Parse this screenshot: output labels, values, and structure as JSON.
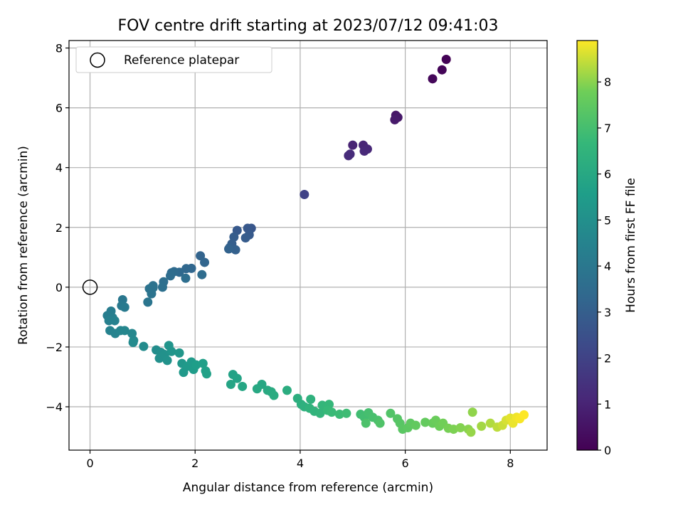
{
  "chart_data": {
    "type": "scatter",
    "title": "FOV centre drift starting at 2023/07/12 09:41:03",
    "xlabel": "Angular distance from reference (arcmin)",
    "ylabel": "Rotation from reference (arcmin)",
    "xlim": [
      -0.4,
      8.7
    ],
    "ylim": [
      -5.45,
      8.25
    ],
    "xticks": [
      0,
      2,
      4,
      6,
      8
    ],
    "xtick_labels": [
      "0",
      "2",
      "4",
      "6",
      "8"
    ],
    "yticks": [
      -4,
      -2,
      0,
      2,
      4,
      6,
      8
    ],
    "ytick_labels": [
      "−4",
      "−2",
      "0",
      "2",
      "4",
      "6",
      "8"
    ],
    "grid": true,
    "colormap": "viridis",
    "colorbar": {
      "label": "Hours from first FF file",
      "range": [
        0,
        8.9
      ],
      "ticks": [
        0,
        1,
        2,
        3,
        4,
        5,
        6,
        7,
        8
      ],
      "tick_labels": [
        "0",
        "1",
        "2",
        "3",
        "4",
        "5",
        "6",
        "7",
        "8"
      ]
    },
    "legend": {
      "placement": "upper-left",
      "entries": [
        "Reference platepar"
      ]
    },
    "reference_point": {
      "x": 0,
      "y": 0
    },
    "points": [
      [
        6.78,
        7.62,
        0.05
      ],
      [
        6.7,
        7.27,
        0.12
      ],
      [
        6.52,
        6.97,
        0.2
      ],
      [
        5.82,
        5.75,
        0.6
      ],
      [
        5.86,
        5.68,
        0.65
      ],
      [
        5.8,
        5.6,
        0.7
      ],
      [
        5.0,
        4.75,
        1.0
      ],
      [
        5.2,
        4.75,
        1.05
      ],
      [
        5.28,
        4.62,
        1.1
      ],
      [
        5.22,
        4.55,
        1.15
      ],
      [
        4.92,
        4.4,
        1.2
      ],
      [
        4.95,
        4.45,
        1.25
      ],
      [
        4.08,
        3.1,
        2.0
      ],
      [
        3.07,
        1.97,
        2.7
      ],
      [
        3.0,
        1.97,
        2.75
      ],
      [
        2.8,
        1.9,
        2.8
      ],
      [
        3.03,
        1.75,
        2.85
      ],
      [
        2.96,
        1.65,
        2.9
      ],
      [
        2.74,
        1.68,
        2.95
      ],
      [
        2.7,
        1.45,
        3.0
      ],
      [
        2.66,
        1.33,
        3.05
      ],
      [
        2.77,
        1.25,
        3.1
      ],
      [
        2.64,
        1.28,
        3.15
      ],
      [
        2.1,
        1.05,
        3.2
      ],
      [
        2.18,
        0.83,
        3.25
      ],
      [
        1.93,
        0.63,
        3.3
      ],
      [
        1.83,
        0.62,
        3.35
      ],
      [
        1.7,
        0.5,
        3.4
      ],
      [
        1.6,
        0.52,
        3.45
      ],
      [
        1.55,
        0.48,
        3.5
      ],
      [
        1.53,
        0.38,
        3.55
      ],
      [
        2.13,
        0.42,
        3.55
      ],
      [
        1.82,
        0.3,
        3.6
      ],
      [
        1.4,
        0.18,
        3.65
      ],
      [
        1.38,
        0.0,
        3.7
      ],
      [
        1.2,
        0.05,
        3.75
      ],
      [
        1.13,
        -0.05,
        3.8
      ],
      [
        1.2,
        -0.02,
        3.82
      ],
      [
        1.17,
        -0.22,
        3.85
      ],
      [
        1.1,
        -0.5,
        3.9
      ],
      [
        0.62,
        -0.42,
        4.0
      ],
      [
        0.6,
        -0.62,
        4.05
      ],
      [
        0.66,
        -0.67,
        4.1
      ],
      [
        0.4,
        -0.8,
        4.2
      ],
      [
        0.33,
        -0.95,
        4.25
      ],
      [
        0.43,
        -1.02,
        4.3
      ],
      [
        0.36,
        -1.12,
        4.35
      ],
      [
        0.47,
        -1.12,
        4.4
      ],
      [
        0.38,
        -1.45,
        4.45
      ],
      [
        0.48,
        -1.55,
        4.5
      ],
      [
        0.58,
        -1.45,
        4.55
      ],
      [
        0.66,
        -1.45,
        4.6
      ],
      [
        0.8,
        -1.55,
        4.65
      ],
      [
        0.83,
        -1.78,
        4.7
      ],
      [
        0.82,
        -1.85,
        4.75
      ],
      [
        1.02,
        -1.98,
        4.8
      ],
      [
        1.26,
        -2.1,
        4.9
      ],
      [
        1.35,
        -2.18,
        4.95
      ],
      [
        1.32,
        -2.38,
        5.0
      ],
      [
        1.42,
        -2.25,
        5.05
      ],
      [
        1.47,
        -2.45,
        5.1
      ],
      [
        1.5,
        -1.95,
        5.15
      ],
      [
        1.55,
        -2.15,
        5.2
      ],
      [
        1.7,
        -2.2,
        5.25
      ],
      [
        1.75,
        -2.55,
        5.3
      ],
      [
        1.78,
        -2.85,
        5.35
      ],
      [
        1.85,
        -2.65,
        5.4
      ],
      [
        1.93,
        -2.5,
        5.45
      ],
      [
        1.97,
        -2.75,
        5.5
      ],
      [
        2.02,
        -2.6,
        5.55
      ],
      [
        2.15,
        -2.55,
        5.6
      ],
      [
        2.2,
        -2.8,
        5.65
      ],
      [
        2.22,
        -2.9,
        5.7
      ],
      [
        2.72,
        -2.92,
        5.75
      ],
      [
        2.8,
        -3.05,
        5.8
      ],
      [
        2.68,
        -3.25,
        5.85
      ],
      [
        2.9,
        -3.32,
        5.9
      ],
      [
        3.27,
        -3.25,
        5.95
      ],
      [
        3.18,
        -3.4,
        6.0
      ],
      [
        3.38,
        -3.45,
        6.05
      ],
      [
        3.45,
        -3.5,
        6.1
      ],
      [
        3.5,
        -3.62,
        6.15
      ],
      [
        3.75,
        -3.45,
        6.2
      ],
      [
        3.95,
        -3.72,
        6.25
      ],
      [
        4.02,
        -3.92,
        6.3
      ],
      [
        4.08,
        -4.0,
        6.35
      ],
      [
        4.2,
        -3.75,
        6.4
      ],
      [
        4.18,
        -4.05,
        6.45
      ],
      [
        4.27,
        -4.15,
        6.5
      ],
      [
        4.38,
        -4.22,
        6.55
      ],
      [
        4.42,
        -3.95,
        6.6
      ],
      [
        4.55,
        -3.92,
        6.65
      ],
      [
        4.52,
        -4.12,
        6.7
      ],
      [
        4.6,
        -4.18,
        6.75
      ],
      [
        4.75,
        -4.25,
        6.8
      ],
      [
        4.88,
        -4.22,
        6.85
      ],
      [
        5.15,
        -4.25,
        6.9
      ],
      [
        5.22,
        -4.35,
        6.95
      ],
      [
        5.3,
        -4.2,
        7.0
      ],
      [
        5.38,
        -4.35,
        7.05
      ],
      [
        5.48,
        -4.45,
        7.1
      ],
      [
        5.25,
        -4.55,
        7.15
      ],
      [
        5.52,
        -4.55,
        7.2
      ],
      [
        5.72,
        -4.22,
        7.25
      ],
      [
        5.85,
        -4.4,
        7.3
      ],
      [
        5.9,
        -4.55,
        7.35
      ],
      [
        5.95,
        -4.75,
        7.4
      ],
      [
        6.05,
        -4.7,
        7.45
      ],
      [
        6.1,
        -4.55,
        7.5
      ],
      [
        6.2,
        -4.62,
        7.55
      ],
      [
        6.38,
        -4.52,
        7.6
      ],
      [
        6.52,
        -4.55,
        7.65
      ],
      [
        6.58,
        -4.45,
        7.7
      ],
      [
        6.65,
        -4.65,
        7.75
      ],
      [
        6.72,
        -4.55,
        7.8
      ],
      [
        6.82,
        -4.72,
        7.85
      ],
      [
        6.92,
        -4.75,
        7.9
      ],
      [
        7.05,
        -4.7,
        7.95
      ],
      [
        7.2,
        -4.75,
        8.0
      ],
      [
        7.28,
        -4.18,
        8.05
      ],
      [
        7.25,
        -4.85,
        8.1
      ],
      [
        7.45,
        -4.65,
        8.2
      ],
      [
        7.62,
        -4.55,
        8.3
      ],
      [
        7.75,
        -4.68,
        8.4
      ],
      [
        7.85,
        -4.62,
        8.5
      ],
      [
        7.92,
        -4.45,
        8.6
      ],
      [
        8.0,
        -4.38,
        8.7
      ],
      [
        8.05,
        -4.55,
        8.75
      ],
      [
        8.12,
        -4.35,
        8.8
      ],
      [
        8.18,
        -4.4,
        8.85
      ],
      [
        8.26,
        -4.27,
        8.9
      ]
    ]
  }
}
